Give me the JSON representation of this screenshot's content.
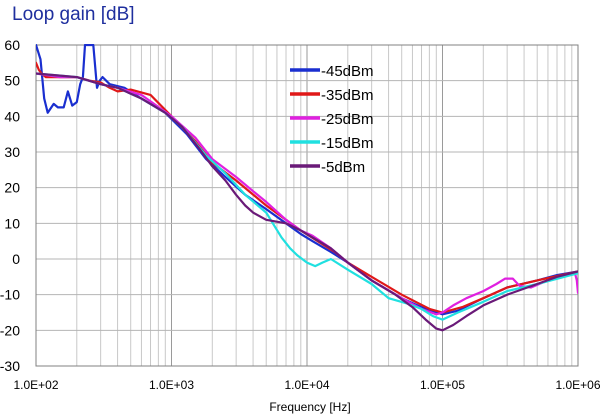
{
  "chart_data": {
    "type": "line",
    "title": "Loop gain [dB]",
    "xlabel": "Frequency [Hz]",
    "ylabel": "",
    "x_scale": "log",
    "xlim": [
      100,
      1000000
    ],
    "ylim": [
      -30,
      60
    ],
    "grid": true,
    "legend_position": "top-center",
    "x_ticks": [
      100,
      1000,
      10000,
      100000,
      1000000
    ],
    "x_tick_labels": [
      "1.0E+02",
      "1.0E+03",
      "1.0E+04",
      "1.0E+05",
      "1.0E+06"
    ],
    "y_ticks": [
      60,
      50,
      40,
      30,
      20,
      10,
      0,
      -10,
      -20,
      -30
    ],
    "y_tick_labels": [
      "60",
      "50",
      "40",
      "30",
      "20",
      "10",
      "0",
      "-10",
      "-20",
      "-30"
    ],
    "series": [
      {
        "name": "-45dBm",
        "color": "#1a2fd0",
        "points": [
          [
            100,
            60
          ],
          [
            108,
            56
          ],
          [
            115,
            45
          ],
          [
            122,
            41
          ],
          [
            135,
            43.5
          ],
          [
            145,
            42.5
          ],
          [
            160,
            42.5
          ],
          [
            172,
            47
          ],
          [
            185,
            43
          ],
          [
            200,
            44
          ],
          [
            212,
            49
          ],
          [
            222,
            51
          ],
          [
            230,
            60
          ],
          [
            245,
            60
          ],
          [
            265,
            60
          ],
          [
            282,
            48
          ],
          [
            295,
            50
          ],
          [
            310,
            51
          ],
          [
            350,
            49
          ],
          [
            450,
            48
          ],
          [
            600,
            45
          ],
          [
            900,
            41
          ],
          [
            1300,
            35
          ],
          [
            1800,
            28
          ],
          [
            2500,
            23
          ],
          [
            3500,
            18
          ],
          [
            5000,
            14
          ],
          [
            7000,
            10
          ],
          [
            9000,
            7
          ],
          [
            11000,
            5
          ],
          [
            15000,
            2
          ],
          [
            20000,
            -1
          ],
          [
            30000,
            -6
          ],
          [
            50000,
            -11
          ],
          [
            70000,
            -13.5
          ],
          [
            90000,
            -15
          ],
          [
            100000,
            -15.5
          ],
          [
            130000,
            -14.5
          ],
          [
            200000,
            -11
          ],
          [
            300000,
            -8
          ],
          [
            500000,
            -6
          ],
          [
            700000,
            -4.5
          ],
          [
            1000000,
            -3.5
          ]
        ]
      },
      {
        "name": "-35dBm",
        "color": "#e01818",
        "points": [
          [
            100,
            55
          ],
          [
            105,
            53
          ],
          [
            110,
            52
          ],
          [
            118,
            51
          ],
          [
            150,
            51
          ],
          [
            200,
            51
          ],
          [
            250,
            50
          ],
          [
            300,
            49.5
          ],
          [
            350,
            48
          ],
          [
            400,
            47
          ],
          [
            500,
            47.5
          ],
          [
            700,
            46
          ],
          [
            1000,
            40
          ],
          [
            1500,
            33
          ],
          [
            2000,
            27
          ],
          [
            3000,
            22
          ],
          [
            5000,
            15
          ],
          [
            7000,
            11
          ],
          [
            9000,
            8
          ],
          [
            12000,
            5
          ],
          [
            16000,
            2
          ],
          [
            20000,
            -1
          ],
          [
            30000,
            -5
          ],
          [
            50000,
            -10
          ],
          [
            80000,
            -14
          ],
          [
            100000,
            -15
          ],
          [
            140000,
            -13.5
          ],
          [
            200000,
            -11
          ],
          [
            300000,
            -8
          ],
          [
            500000,
            -6
          ],
          [
            1000000,
            -3.5
          ]
        ]
      },
      {
        "name": "-25dBm",
        "color": "#e020e0",
        "points": [
          [
            100,
            52
          ],
          [
            150,
            51
          ],
          [
            200,
            51
          ],
          [
            300,
            49
          ],
          [
            400,
            48
          ],
          [
            600,
            46
          ],
          [
            1000,
            40
          ],
          [
            1500,
            34
          ],
          [
            2000,
            28
          ],
          [
            3000,
            23
          ],
          [
            4000,
            19
          ],
          [
            5000,
            16
          ],
          [
            7000,
            11
          ],
          [
            9000,
            8
          ],
          [
            11000,
            6.5
          ],
          [
            15000,
            3
          ],
          [
            20000,
            -1
          ],
          [
            30000,
            -6
          ],
          [
            50000,
            -11
          ],
          [
            70000,
            -14
          ],
          [
            90000,
            -15.5
          ],
          [
            100000,
            -15
          ],
          [
            120000,
            -13
          ],
          [
            150000,
            -11
          ],
          [
            200000,
            -9
          ],
          [
            250000,
            -7
          ],
          [
            290000,
            -5.5
          ],
          [
            330000,
            -5.5
          ],
          [
            370000,
            -7.5
          ],
          [
            450000,
            -8
          ],
          [
            600000,
            -6
          ],
          [
            800000,
            -4.5
          ],
          [
            950000,
            -4
          ],
          [
            980000,
            -6
          ],
          [
            1000000,
            -9.5
          ]
        ]
      },
      {
        "name": "-15dBm",
        "color": "#20e0e0",
        "points": [
          [
            100,
            52
          ],
          [
            200,
            51
          ],
          [
            300,
            49
          ],
          [
            400,
            48
          ],
          [
            600,
            45
          ],
          [
            900,
            41
          ],
          [
            1200,
            37
          ],
          [
            1800,
            29
          ],
          [
            2500,
            24
          ],
          [
            3500,
            18
          ],
          [
            5000,
            13
          ],
          [
            6500,
            6
          ],
          [
            7500,
            3
          ],
          [
            8500,
            1
          ],
          [
            10000,
            -1
          ],
          [
            11500,
            -2
          ],
          [
            13000,
            -1
          ],
          [
            15000,
            0
          ],
          [
            20000,
            -3
          ],
          [
            30000,
            -7
          ],
          [
            40000,
            -11
          ],
          [
            55000,
            -12.5
          ],
          [
            70000,
            -14
          ],
          [
            85000,
            -16
          ],
          [
            100000,
            -17
          ],
          [
            130000,
            -15
          ],
          [
            200000,
            -12
          ],
          [
            300000,
            -9
          ],
          [
            500000,
            -7
          ],
          [
            1000000,
            -4
          ]
        ]
      },
      {
        "name": "-5dBm",
        "color": "#6a1a78",
        "points": [
          [
            100,
            52
          ],
          [
            200,
            51
          ],
          [
            300,
            49
          ],
          [
            400,
            48
          ],
          [
            600,
            45
          ],
          [
            900,
            41
          ],
          [
            1200,
            37
          ],
          [
            1600,
            31
          ],
          [
            2000,
            26
          ],
          [
            2500,
            22
          ],
          [
            3000,
            18
          ],
          [
            3500,
            15
          ],
          [
            4000,
            13
          ],
          [
            5000,
            11
          ],
          [
            7000,
            10
          ],
          [
            9000,
            8
          ],
          [
            11000,
            6
          ],
          [
            15000,
            3
          ],
          [
            20000,
            -1
          ],
          [
            30000,
            -6
          ],
          [
            45000,
            -10
          ],
          [
            60000,
            -13.5
          ],
          [
            75000,
            -17
          ],
          [
            90000,
            -19.5
          ],
          [
            100000,
            -20
          ],
          [
            120000,
            -18.5
          ],
          [
            150000,
            -16
          ],
          [
            200000,
            -13
          ],
          [
            300000,
            -10
          ],
          [
            500000,
            -7
          ],
          [
            700000,
            -5
          ],
          [
            1000000,
            -3.5
          ]
        ]
      }
    ]
  }
}
